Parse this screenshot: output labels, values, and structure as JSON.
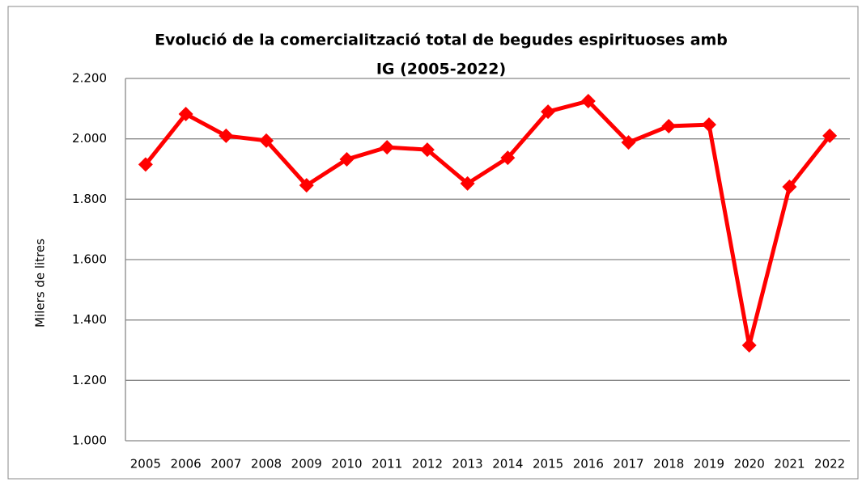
{
  "chart_data": {
    "type": "line",
    "title": [
      "Evolució de la comercialització total de begudes espirituoses amb",
      "IG (2005-2022)"
    ],
    "y_label": "Milers de litres",
    "categories": [
      "2005",
      "2006",
      "2007",
      "2008",
      "2009",
      "2010",
      "2011",
      "2012",
      "2013",
      "2014",
      "2015",
      "2016",
      "2017",
      "2018",
      "2019",
      "2020",
      "2021",
      "2022"
    ],
    "series": [
      {
        "color": "#ff0000",
        "values": [
          1915,
          2082,
          2010,
          1994,
          1846,
          1932,
          1972,
          1964,
          1852,
          1937,
          2090,
          2125,
          1988,
          2042,
          2047,
          1316,
          1841,
          2010
        ]
      }
    ],
    "ylim": [
      1000,
      2200
    ],
    "yticks": [
      {
        "value": 1000,
        "label": "1.000"
      },
      {
        "value": 1200,
        "label": "1.200"
      },
      {
        "value": 1400,
        "label": "1.400"
      },
      {
        "value": 1600,
        "label": "1.600"
      },
      {
        "value": 1800,
        "label": "1.800"
      },
      {
        "value": 2000,
        "label": "2.000"
      },
      {
        "value": 2200,
        "label": "2.200"
      }
    ],
    "grid": true
  }
}
